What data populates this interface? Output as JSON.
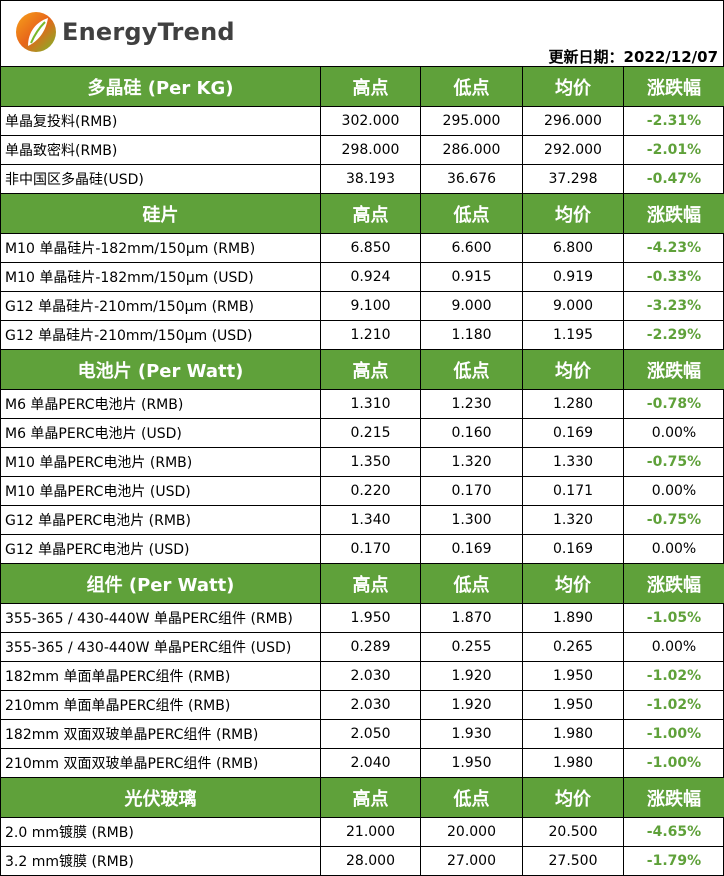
{
  "brand": {
    "name": "EnergyTrend",
    "colors": {
      "orange": "#f39a1e",
      "green": "#5fa13a"
    }
  },
  "update": {
    "label": "更新日期：",
    "date": "2022/12/07"
  },
  "colors": {
    "header_bg": "#5fa13a",
    "negative_change": "#5fa13a"
  },
  "columns": [
    "高点",
    "低点",
    "均价",
    "涨跌幅"
  ],
  "sections": [
    {
      "title": "多晶硅 (Per KG)",
      "rows": [
        [
          "单晶复投料(RMB)",
          "302.000",
          "295.000",
          "296.000",
          "-2.31%"
        ],
        [
          "单晶致密料(RMB)",
          "298.000",
          "286.000",
          "292.000",
          "-2.01%"
        ],
        [
          "非中国区多晶硅(USD)",
          "38.193",
          "36.676",
          "37.298",
          "-0.47%"
        ]
      ]
    },
    {
      "title": "硅片",
      "rows": [
        [
          "M10 单晶硅片-182mm/150μm (RMB)",
          "6.850",
          "6.600",
          "6.800",
          "-4.23%"
        ],
        [
          "M10 单晶硅片-182mm/150μm (USD)",
          "0.924",
          "0.915",
          "0.919",
          "-0.33%"
        ],
        [
          "G12 单晶硅片-210mm/150μm  (RMB)",
          "9.100",
          "9.000",
          "9.000",
          "-3.23%"
        ],
        [
          "G12 单晶硅片-210mm/150μm  (USD)",
          "1.210",
          "1.180",
          "1.195",
          "-2.29%"
        ]
      ]
    },
    {
      "title": "电池片 (Per Watt)",
      "rows": [
        [
          "M6 单晶PERC电池片 (RMB)",
          "1.310",
          "1.230",
          "1.280",
          "-0.78%"
        ],
        [
          "M6 单晶PERC电池片 (USD)",
          "0.215",
          "0.160",
          "0.169",
          "0.00%"
        ],
        [
          "M10 单晶PERC电池片 (RMB)",
          "1.350",
          "1.320",
          "1.330",
          "-0.75%"
        ],
        [
          "M10 单晶PERC电池片 (USD)",
          "0.220",
          "0.170",
          "0.171",
          "0.00%"
        ],
        [
          "G12 单晶PERC电池片 (RMB)",
          "1.340",
          "1.300",
          "1.320",
          "-0.75%"
        ],
        [
          "G12 单晶PERC电池片 (USD)",
          "0.170",
          "0.169",
          "0.169",
          "0.00%"
        ]
      ]
    },
    {
      "title": "组件 (Per Watt)",
      "rows": [
        [
          "355-365 / 430-440W 单晶PERC组件 (RMB)",
          "1.950",
          "1.870",
          "1.890",
          "-1.05%"
        ],
        [
          "355-365 / 430-440W 单晶PERC组件 (USD)",
          "0.289",
          "0.255",
          "0.265",
          "0.00%"
        ],
        [
          "182mm 单面单晶PERC组件 (RMB)",
          "2.030",
          "1.920",
          "1.950",
          "-1.02%"
        ],
        [
          "210mm 单面单晶PERC组件 (RMB)",
          "2.030",
          "1.920",
          "1.950",
          "-1.02%"
        ],
        [
          "182mm 双面双玻单晶PERC组件 (RMB)",
          "2.050",
          "1.930",
          "1.980",
          "-1.00%"
        ],
        [
          "210mm 双面双玻单晶PERC组件 (RMB)",
          "2.040",
          "1.950",
          "1.980",
          "-1.00%"
        ]
      ]
    },
    {
      "title": "光伏玻璃",
      "rows": [
        [
          "2.0 mm镀膜 (RMB)",
          "21.000",
          "20.000",
          "20.500",
          "-4.65%"
        ],
        [
          "3.2 mm镀膜 (RMB)",
          "28.000",
          "27.000",
          "27.500",
          "-1.79%"
        ]
      ]
    }
  ]
}
